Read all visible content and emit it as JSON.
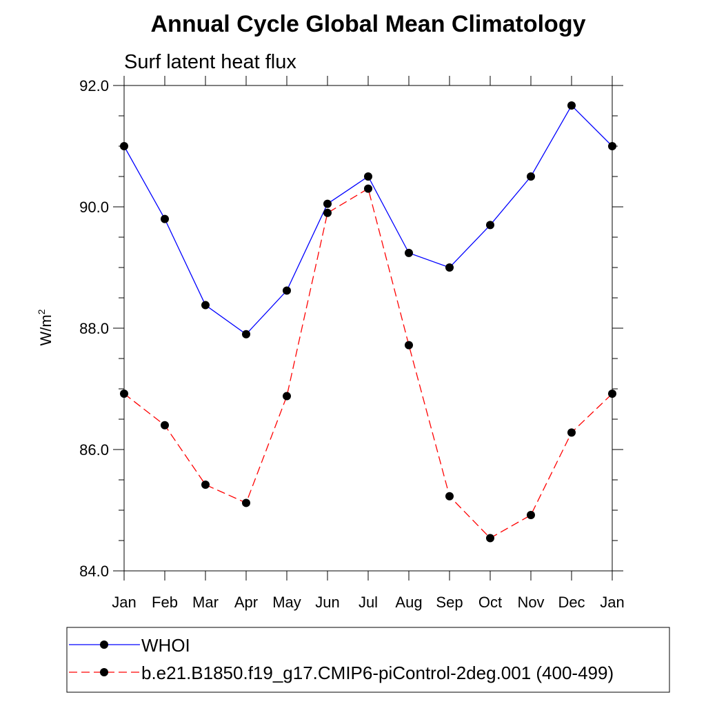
{
  "chart_data": {
    "type": "line",
    "title": "Annual Cycle Global Mean Climatology",
    "subtitle": "Surf latent heat flux",
    "ylabel_base": "W/m",
    "ylabel_sup": "2",
    "categories": [
      "Jan",
      "Feb",
      "Mar",
      "Apr",
      "May",
      "Jun",
      "Jul",
      "Aug",
      "Sep",
      "Oct",
      "Nov",
      "Dec",
      "Jan"
    ],
    "ylim": [
      84.0,
      92.0
    ],
    "yticks": [
      "84.0",
      "86.0",
      "88.0",
      "90.0",
      "92.0"
    ],
    "series": [
      {
        "name": "WHOI",
        "color": "#0000ff",
        "dash": "solid",
        "values": [
          91.0,
          89.8,
          88.38,
          87.9,
          88.62,
          90.05,
          90.5,
          89.24,
          89.0,
          89.7,
          90.5,
          91.67,
          91.0
        ]
      },
      {
        "name": "b.e21.B1850.f19_g17.CMIP6-piControl-2deg.001 (400-499)",
        "color": "#ff0000",
        "dash": "dashed",
        "values": [
          86.92,
          86.4,
          85.42,
          85.12,
          86.88,
          89.9,
          90.3,
          87.72,
          85.23,
          84.54,
          84.92,
          86.28,
          86.92
        ]
      }
    ],
    "legend_position": "bottom"
  }
}
